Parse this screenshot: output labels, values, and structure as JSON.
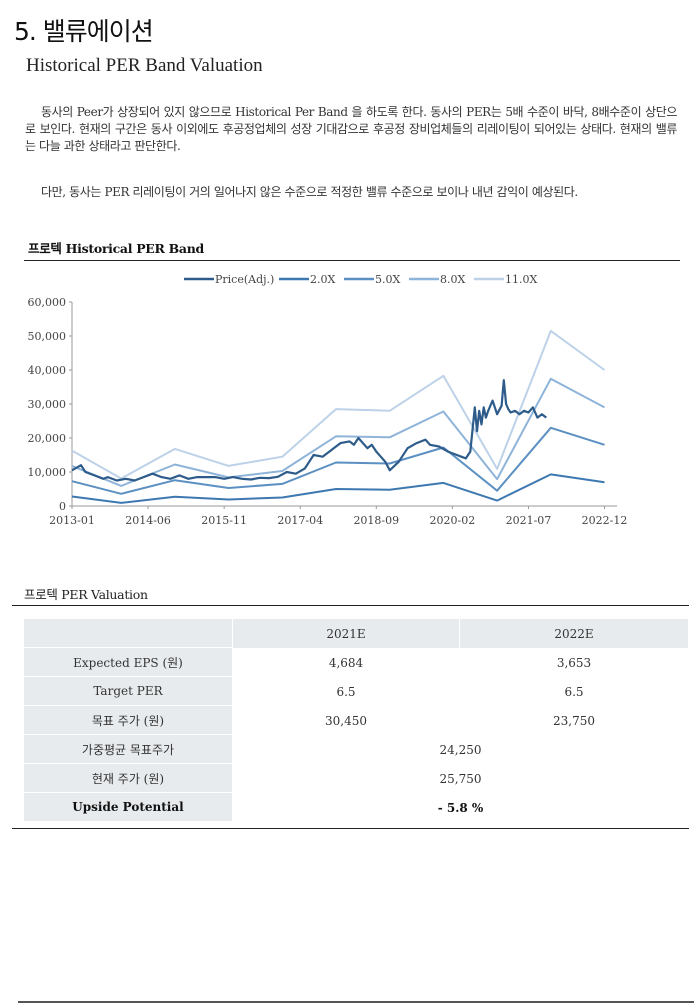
{
  "section_title": "5. 밸류에이션",
  "subtitle": "Historical PER Band Valuation",
  "paragraphs": {
    "p1": "동사의 Peer가 상장되어 있지 않으므로 Historical Per Band 을 하도록 한다. 동사의 PER는 5배 수준이 바닥, 8배수준이 상단으로 보인다. 현재의 구간은 동사 이외에도 후공정업체의 성장 기대감으로 후공정 장비업체들의 리레이팅이 되어있는 상태다. 현재의 밸류는 다늘 과한 상태라고 판단한다.",
    "p2": "다만, 동사는 PER 리레이팅이 거의 일어나지 않은 수준으로 적정한 밸류 수준으로 보이나 내년 감익이 예상된다."
  },
  "chart_title": "프로텍 Historical PER Band",
  "chart_data": {
    "type": "line",
    "title": "프로텍 Historical PER Band",
    "legend": [
      "Price(Adj.)",
      "2.0X",
      "5.0X",
      "8.0X",
      "11.0X"
    ],
    "legend_position": "top",
    "ylim": [
      0,
      60000
    ],
    "yticks": [
      "0",
      "10,000",
      "20,000",
      "30,000",
      "40,000",
      "50,000",
      "60,000"
    ],
    "xlim": [
      0,
      120
    ],
    "xticks": [
      {
        "m": 0,
        "label": "2013-01"
      },
      {
        "m": 17,
        "label": "2014-06"
      },
      {
        "m": 34,
        "label": "2015-11"
      },
      {
        "m": 51,
        "label": "2017-04"
      },
      {
        "m": 68,
        "label": "2018-09"
      },
      {
        "m": 85,
        "label": "2020-02"
      },
      {
        "m": 102,
        "label": "2021-07"
      },
      {
        "m": 119,
        "label": "2022-12"
      }
    ],
    "colors": {
      "price": "#2e5c8a",
      "band2": "#3e78b0",
      "band5": "#5c90c2",
      "band8": "#8fb4d9",
      "band11": "#bdd2e8"
    },
    "series": [
      {
        "name": "2.0X",
        "key": "band2",
        "x": [
          0,
          11,
          23,
          35,
          47,
          59,
          71,
          83,
          95,
          107,
          119
        ],
        "values": [
          2800,
          900,
          2700,
          1900,
          2500,
          5000,
          4800,
          6800,
          1600,
          9300,
          7000
        ]
      },
      {
        "name": "5.0X",
        "key": "band5",
        "x": [
          0,
          11,
          23,
          35,
          47,
          59,
          71,
          83,
          95,
          107,
          119
        ],
        "values": [
          7300,
          3600,
          7600,
          5300,
          6500,
          12800,
          12500,
          17200,
          4500,
          23000,
          18000
        ]
      },
      {
        "name": "8.0X",
        "key": "band8",
        "x": [
          0,
          11,
          23,
          35,
          47,
          59,
          71,
          83,
          95,
          107,
          119
        ],
        "values": [
          11800,
          5900,
          12200,
          8400,
          10300,
          20500,
          20200,
          27800,
          7900,
          37400,
          29000
        ]
      },
      {
        "name": "11.0X",
        "key": "band11",
        "x": [
          0,
          11,
          23,
          35,
          47,
          59,
          71,
          83,
          95,
          107,
          119
        ],
        "values": [
          16300,
          8100,
          16800,
          11800,
          14500,
          28500,
          28000,
          38300,
          10900,
          51500,
          40000
        ]
      },
      {
        "name": "Price(Adj.)",
        "key": "price",
        "x": [
          0,
          2,
          3,
          5,
          7,
          8,
          10,
          12,
          14,
          16,
          18,
          20,
          22,
          24,
          26,
          28,
          30,
          32,
          34,
          36,
          38,
          40,
          42,
          44,
          46,
          48,
          50,
          52,
          53,
          54,
          56,
          58,
          59,
          60,
          62,
          63,
          64,
          66,
          67,
          68,
          69,
          70,
          71,
          73,
          75,
          77,
          78,
          79,
          80,
          82,
          84,
          86,
          87,
          88,
          89,
          90,
          90.5,
          91,
          91.5,
          92,
          92.5,
          93,
          94,
          95,
          96,
          96.5,
          97,
          97.5,
          98,
          99,
          100,
          101,
          102,
          103,
          104,
          105,
          106
        ],
        "values": [
          10500,
          12000,
          10000,
          9000,
          8000,
          8500,
          7500,
          8000,
          7500,
          8500,
          9500,
          8500,
          8000,
          9000,
          8000,
          8500,
          8500,
          8500,
          8000,
          8500,
          8000,
          7800,
          8300,
          8200,
          8600,
          10000,
          9500,
          11000,
          13000,
          15000,
          14500,
          16500,
          17500,
          18500,
          19000,
          18000,
          20000,
          17000,
          18000,
          16000,
          14500,
          13000,
          10500,
          13000,
          17000,
          18500,
          19000,
          19500,
          18000,
          17500,
          16000,
          15000,
          14500,
          14000,
          16000,
          29000,
          22000,
          28000,
          24000,
          29000,
          26000,
          28000,
          31000,
          27000,
          29500,
          37000,
          30000,
          28500,
          27500,
          28000,
          27000,
          28000,
          27500,
          29000,
          26000,
          27000,
          26000
        ]
      }
    ]
  },
  "valuation": {
    "title": "프로텍 PER Valuation",
    "headers": [
      "2021E",
      "2022E"
    ],
    "rows": [
      {
        "label": "Expected EPS (원)",
        "v2021": "4,684",
        "v2022": "3,653"
      },
      {
        "label": "Target PER",
        "v2021": "6.5",
        "v2022": "6.5"
      },
      {
        "label": "목표 주가 (원)",
        "v2021": "30,450",
        "v2022": "23,750"
      }
    ],
    "merged_rows": [
      {
        "label": "가중평균 목표주가",
        "value": "24,250"
      },
      {
        "label": "현재 주가 (원)",
        "value": "25,750"
      },
      {
        "label": "Upside Potential",
        "value": "- 5.8 %"
      }
    ]
  }
}
